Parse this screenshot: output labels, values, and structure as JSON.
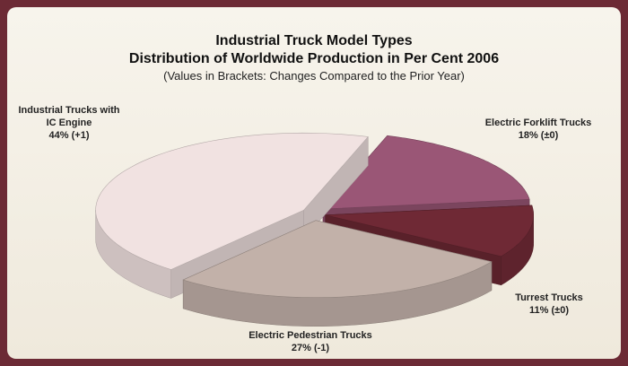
{
  "chart_data": {
    "type": "pie",
    "title": "Industrial Truck Model Types",
    "subtitle": "Distribution of Worldwide Production in Per Cent 2006",
    "note": "(Values in Brackets: Changes Compared to the Prior Year)",
    "categories": [
      "Electric Forklift Trucks",
      "Turrest Trucks",
      "Electric Pedestrian Trucks",
      "Industrial Trucks with IC Engine"
    ],
    "values": [
      18,
      11,
      27,
      44
    ],
    "value_labels": [
      "18%",
      "11%",
      "27%",
      "44%"
    ],
    "changes": [
      0,
      0,
      -1,
      1
    ],
    "change_labels": [
      "(±0)",
      "(±0)",
      "(-1)",
      "(+1)"
    ],
    "colors": [
      "#9a5676",
      "#6f2935",
      "#c2b1a9",
      "#f1e2e1"
    ]
  }
}
